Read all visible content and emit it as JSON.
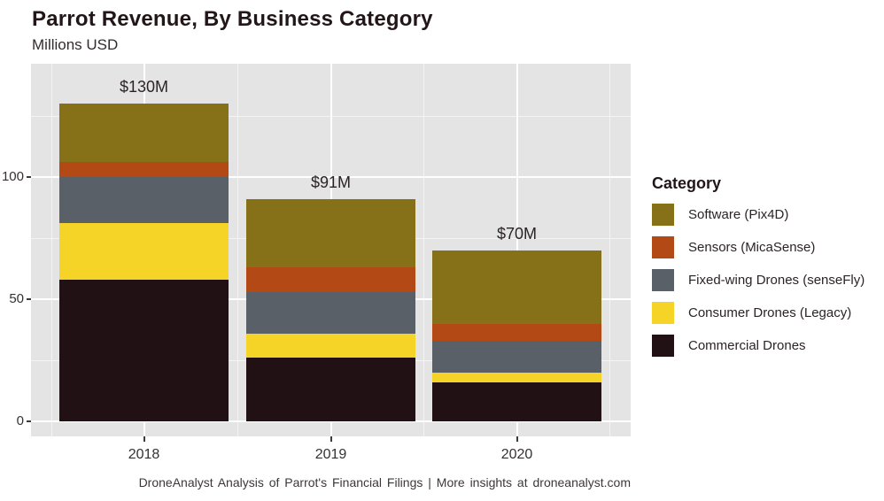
{
  "title": "Parrot Revenue, By Business Category",
  "subtitle": "Millions USD",
  "caption": "DroneAnalyst Analysis of Parrot's Financial Filings | More insights at droneanalyst.com",
  "legend": {
    "title": "Category",
    "position": "right"
  },
  "colors": {
    "panel_background": "#e4e4e4",
    "gridline_major": "#ffffff",
    "gridline_minor": "#f4f4f4",
    "text_dark": "#221619",
    "axis_text": "#363032"
  },
  "chart_data": {
    "type": "bar",
    "stacked": true,
    "title": "Parrot Revenue, By Business Category",
    "subtitle": "Millions USD",
    "categories": [
      "2018",
      "2019",
      "2020"
    ],
    "total_labels": [
      "$130M",
      "$91M",
      "$70M"
    ],
    "totals": [
      130,
      91,
      70
    ],
    "series": [
      {
        "name": "Software (Pix4D)",
        "color": "#867119",
        "values": [
          24,
          28,
          30
        ]
      },
      {
        "name": "Sensors (MicaSense)",
        "color": "#b34a16",
        "values": [
          6,
          10,
          7
        ]
      },
      {
        "name": "Fixed-wing Drones (senseFly)",
        "color": "#5a6068",
        "values": [
          19,
          17,
          13
        ]
      },
      {
        "name": "Consumer Drones (Legacy)",
        "color": "#f5d327",
        "values": [
          23,
          10,
          4
        ]
      },
      {
        "name": "Commercial Drones",
        "color": "#211115",
        "values": [
          58,
          26,
          16
        ]
      }
    ],
    "xlabel": "",
    "ylabel": "Millions USD",
    "y_axis": {
      "ticks": [
        0,
        50,
        100
      ],
      "minor_ticks": [
        25,
        75,
        125
      ],
      "range": [
        -6,
        146
      ]
    },
    "grid": true,
    "legend_position": "right"
  }
}
